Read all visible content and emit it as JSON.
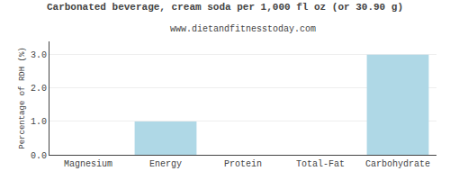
{
  "chart_data": {
    "type": "bar",
    "title": "Carbonated beverage, cream soda per 1,000 fl oz (or 30.90 g)",
    "subtitle": "www.dietandfitnesstoday.com",
    "ylabel": "Percentage of RDH (%)",
    "categories": [
      "Magnesium",
      "Energy",
      "Protein",
      "Total-Fat",
      "Carbohydrate"
    ],
    "values": [
      0.0,
      1.0,
      0.0,
      0.0,
      3.0
    ],
    "color": "#afd8e6",
    "ylim": [
      0,
      3.4
    ],
    "yticks": [
      {
        "value": 0.0,
        "label": "0.0"
      },
      {
        "value": 1.0,
        "label": "1.0"
      },
      {
        "value": 2.0,
        "label": "2.0"
      },
      {
        "value": 3.0,
        "label": "3.0"
      }
    ],
    "grid": true
  }
}
